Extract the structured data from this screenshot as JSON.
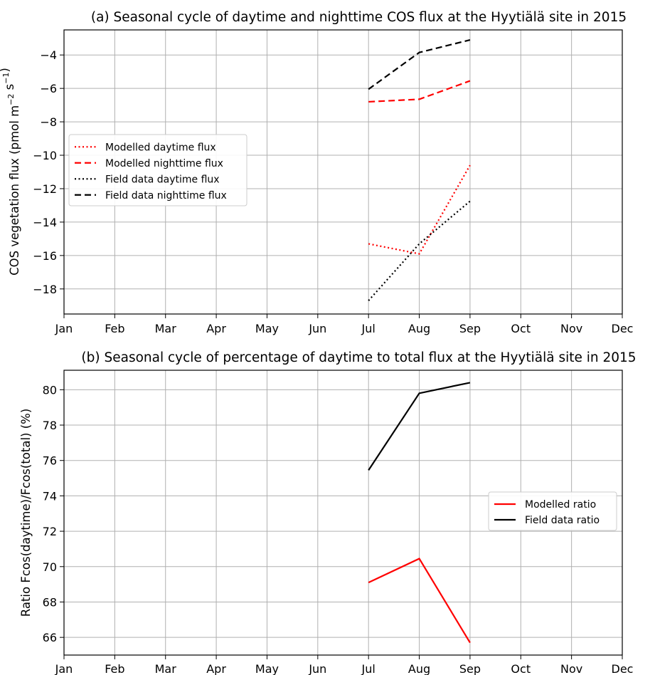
{
  "chart_data": [
    {
      "type": "line",
      "title": "(a) Seasonal cycle of daytime and nighttime COS flux at the Hyytiälä site in 2015",
      "ylabel_main": "COS vegetation flux (pmol  m",
      "ylabel_sup1": "−2",
      "ylabel_mid": "  s",
      "ylabel_sup2": "−1",
      "ylabel_end": ")",
      "categories": [
        "Jan",
        "Feb",
        "Mar",
        "Apr",
        "May",
        "Jun",
        "Jul",
        "Aug",
        "Sep",
        "Oct",
        "Nov",
        "Dec"
      ],
      "xlim": [
        0,
        11
      ],
      "ylim": [
        -19.5,
        -2.5
      ],
      "yticks": [
        -18,
        -16,
        -14,
        -12,
        -10,
        -8,
        -6,
        -4
      ],
      "grid": true,
      "legend_position": "center-left",
      "series": [
        {
          "name": "Modelled daytime flux",
          "color": "#ff0000",
          "style": "dotted",
          "x": [
            6,
            7,
            8
          ],
          "values": [
            -15.3,
            -15.9,
            -10.6
          ]
        },
        {
          "name": "Modelled nighttime flux",
          "color": "#ff0000",
          "style": "dashed",
          "x": [
            6,
            7,
            8
          ],
          "values": [
            -6.8,
            -6.65,
            -5.55
          ]
        },
        {
          "name": "Field data daytime flux",
          "color": "#000000",
          "style": "dotted",
          "x": [
            6,
            7,
            8
          ],
          "values": [
            -18.7,
            -15.3,
            -12.75
          ]
        },
        {
          "name": "Field data nighttime flux",
          "color": "#000000",
          "style": "dashed",
          "x": [
            6,
            7,
            8
          ],
          "values": [
            -6.05,
            -3.85,
            -3.1
          ]
        }
      ]
    },
    {
      "type": "line",
      "title": "(b) Seasonal cycle of percentage of daytime to total flux at the Hyytiälä site in 2015",
      "ylabel": "Ratio Fcos(daytime)/Fcos(total) (%)",
      "categories": [
        "Jan",
        "Feb",
        "Mar",
        "Apr",
        "May",
        "Jun",
        "Jul",
        "Aug",
        "Sep",
        "Oct",
        "Nov",
        "Dec"
      ],
      "xlim": [
        0,
        11
      ],
      "ylim": [
        65,
        81.1
      ],
      "yticks": [
        66,
        68,
        70,
        72,
        74,
        76,
        78,
        80
      ],
      "grid": true,
      "legend_position": "center-right",
      "series": [
        {
          "name": "Modelled ratio",
          "color": "#ff0000",
          "style": "solid",
          "x": [
            6,
            7,
            8
          ],
          "values": [
            69.1,
            70.45,
            65.7
          ]
        },
        {
          "name": "Field data ratio",
          "color": "#000000",
          "style": "solid",
          "x": [
            6,
            7,
            8
          ],
          "values": [
            75.45,
            79.8,
            80.4
          ]
        }
      ]
    }
  ]
}
